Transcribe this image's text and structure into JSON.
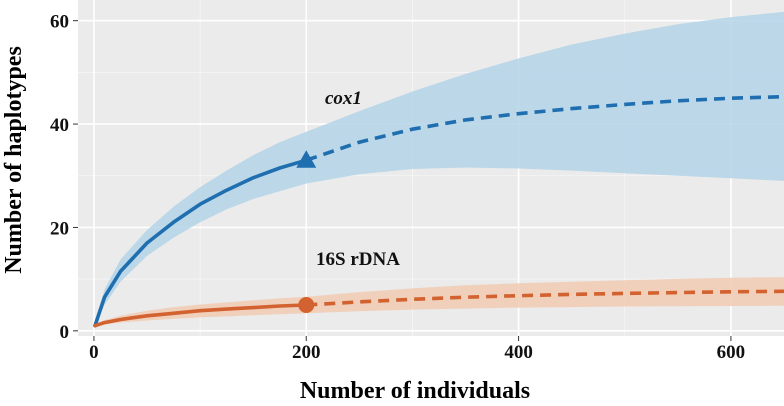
{
  "chart_data": {
    "type": "line",
    "title": "",
    "xlabel": "Number of individuals",
    "ylabel": "Number of haplotypes",
    "xlim": [
      -15,
      650
    ],
    "ylim": [
      -1,
      64
    ],
    "xticks": [
      0,
      200,
      400,
      600
    ],
    "yticks": [
      0,
      20,
      40,
      60
    ],
    "grid": true,
    "colors": {
      "panel": "#ebebeb",
      "grid": "#ffffff"
    },
    "series": [
      {
        "name": "cox1",
        "label": "cox1",
        "color": "#1f6fb0",
        "band_color": "#b3d3e8",
        "marker": "triangle",
        "reference_point": {
          "x": 200,
          "y": 33
        },
        "interpolated": {
          "x": [
            1,
            10,
            25,
            50,
            75,
            100,
            125,
            150,
            175,
            200
          ],
          "y": [
            1,
            6.5,
            11.5,
            17,
            21,
            24.5,
            27.2,
            29.6,
            31.5,
            33
          ],
          "lower": [
            1,
            5,
            9.5,
            14.5,
            18,
            21,
            23.5,
            25.5,
            27,
            28.5
          ],
          "upper": [
            1,
            8,
            13.8,
            19.5,
            24,
            27.8,
            31,
            34,
            36.5,
            38.5
          ]
        },
        "extrapolated": {
          "x": [
            200,
            250,
            300,
            350,
            400,
            450,
            500,
            550,
            600,
            650
          ],
          "y": [
            33,
            36.5,
            39,
            40.8,
            42,
            43,
            43.8,
            44.5,
            45,
            45.3
          ],
          "lower": [
            28.5,
            30.3,
            31.3,
            31.6,
            31.4,
            31,
            30.5,
            30,
            29.5,
            29
          ],
          "upper": [
            38.5,
            42.5,
            46.3,
            49.7,
            52.7,
            55.4,
            57.5,
            59.3,
            60.7,
            61.7
          ]
        }
      },
      {
        "name": "16S rDNA",
        "label": "16S rDNA",
        "color": "#d2622f",
        "band_color": "#f1cbb3",
        "marker": "circle",
        "reference_point": {
          "x": 200,
          "y": 5
        },
        "interpolated": {
          "x": [
            1,
            10,
            25,
            50,
            75,
            100,
            125,
            150,
            175,
            200
          ],
          "y": [
            1,
            1.6,
            2.2,
            2.9,
            3.4,
            3.9,
            4.2,
            4.5,
            4.8,
            5
          ],
          "lower": [
            1,
            1.2,
            1.6,
            2,
            2.3,
            2.6,
            2.8,
            3,
            3.2,
            3.4
          ],
          "upper": [
            1,
            2.1,
            2.9,
            3.9,
            4.6,
            5.1,
            5.5,
            5.9,
            6.3,
            6.6
          ]
        },
        "extrapolated": {
          "x": [
            200,
            250,
            300,
            350,
            400,
            450,
            500,
            550,
            600,
            650
          ],
          "y": [
            5,
            5.6,
            6.1,
            6.5,
            6.8,
            7.05,
            7.25,
            7.4,
            7.55,
            7.65
          ],
          "lower": [
            3.4,
            3.8,
            4.1,
            4.3,
            4.5,
            4.6,
            4.7,
            4.75,
            4.8,
            4.85
          ],
          "upper": [
            6.6,
            7.5,
            8.2,
            8.8,
            9.2,
            9.5,
            9.8,
            10.05,
            10.25,
            10.4
          ]
        }
      }
    ]
  }
}
